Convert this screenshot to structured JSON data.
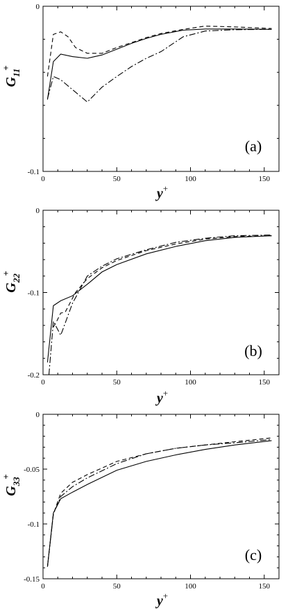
{
  "chart_data": [
    {
      "type": "line",
      "panel_label": "(a)",
      "ylabel": "G",
      "ylabel_sup": "+",
      "ylabel_sub": "11",
      "xlabel": "y",
      "xlabel_sup": "+",
      "xlim": [
        0,
        160
      ],
      "ylim": [
        -0.1,
        0
      ],
      "xticks": [
        0,
        50,
        100,
        150
      ],
      "xtick_labels": [
        "0",
        "50",
        "100",
        "150"
      ],
      "yticks": [
        -0.1,
        0
      ],
      "ytick_labels": [
        "-0.1",
        "0"
      ],
      "series": [
        {
          "style": "solid",
          "x": [
            3,
            7,
            12,
            20,
            30,
            40,
            50,
            60,
            70,
            80,
            95,
            110,
            130,
            155
          ],
          "y": [
            -0.0565,
            -0.0335,
            -0.029,
            -0.0305,
            -0.0315,
            -0.0295,
            -0.026,
            -0.0225,
            -0.0195,
            -0.017,
            -0.0145,
            -0.0138,
            -0.0138,
            -0.014
          ]
        },
        {
          "style": "dashed",
          "x": [
            3,
            7,
            12,
            17,
            22,
            30,
            40,
            50,
            60,
            70,
            80,
            95,
            110,
            130,
            155
          ],
          "y": [
            -0.0425,
            -0.017,
            -0.0155,
            -0.0185,
            -0.025,
            -0.0285,
            -0.0285,
            -0.025,
            -0.022,
            -0.019,
            -0.0165,
            -0.014,
            -0.012,
            -0.0125,
            -0.0135
          ]
        },
        {
          "style": "dashdot",
          "x": [
            3,
            7,
            12,
            20,
            30,
            40,
            50,
            60,
            70,
            80,
            95,
            110,
            130,
            155
          ],
          "y": [
            -0.056,
            -0.0425,
            -0.0445,
            -0.0505,
            -0.058,
            -0.049,
            -0.0425,
            -0.0365,
            -0.0315,
            -0.0275,
            -0.0185,
            -0.015,
            -0.0142,
            -0.014
          ]
        }
      ]
    },
    {
      "type": "line",
      "panel_label": "(b)",
      "ylabel": "G",
      "ylabel_sup": "+",
      "ylabel_sub": "22",
      "xlabel": "y",
      "xlabel_sup": "+",
      "xlim": [
        0,
        160
      ],
      "ylim": [
        -0.2,
        0
      ],
      "xticks": [
        0,
        50,
        100,
        150
      ],
      "xtick_labels": [
        "0",
        "50",
        "100",
        "150"
      ],
      "yticks": [
        -0.2,
        -0.1,
        0
      ],
      "ytick_labels": [
        "-0.2",
        "-0.1",
        "0"
      ],
      "series": [
        {
          "style": "solid",
          "x": [
            3,
            7,
            12,
            20,
            30,
            40,
            50,
            70,
            90,
            110,
            130,
            155
          ],
          "y": [
            -0.185,
            -0.116,
            -0.11,
            -0.104,
            -0.09,
            -0.075,
            -0.066,
            -0.053,
            -0.044,
            -0.037,
            -0.033,
            -0.031
          ]
        },
        {
          "style": "dashed",
          "x": [
            7,
            9,
            12,
            15,
            22,
            30,
            40,
            50,
            70,
            90,
            110,
            130,
            155
          ],
          "y": [
            -0.142,
            -0.136,
            -0.125,
            -0.124,
            -0.1,
            -0.083,
            -0.07,
            -0.061,
            -0.049,
            -0.041,
            -0.035,
            -0.032,
            -0.031
          ]
        },
        {
          "style": "dashdot",
          "x": [
            4,
            7,
            12,
            20,
            30,
            40,
            50,
            70,
            90,
            110,
            130,
            155
          ],
          "y": [
            -0.2,
            -0.135,
            -0.152,
            -0.113,
            -0.08,
            -0.068,
            -0.059,
            -0.048,
            -0.039,
            -0.034,
            -0.031,
            -0.03
          ]
        }
      ]
    },
    {
      "type": "line",
      "panel_label": "(c)",
      "ylabel": "G",
      "ylabel_sup": "+",
      "ylabel_sub": "33",
      "xlabel": "y",
      "xlabel_sup": "+",
      "xlim": [
        0,
        160
      ],
      "ylim": [
        -0.15,
        0
      ],
      "xticks": [
        0,
        50,
        100,
        150
      ],
      "xtick_labels": [
        "0",
        "50",
        "100",
        "150"
      ],
      "yticks": [
        -0.15,
        -0.1,
        -0.05,
        0
      ],
      "ytick_labels": [
        "-0.15",
        "-0.1",
        "-0.05",
        "0"
      ],
      "series": [
        {
          "style": "solid",
          "x": [
            3,
            7,
            12,
            20,
            30,
            50,
            70,
            90,
            110,
            130,
            155
          ],
          "y": [
            -0.139,
            -0.09,
            -0.077,
            -0.071,
            -0.064,
            -0.051,
            -0.043,
            -0.037,
            -0.032,
            -0.028,
            -0.024
          ]
        },
        {
          "style": "dashed",
          "x": [
            3,
            7,
            12,
            20,
            30,
            50,
            70,
            90,
            110,
            130,
            155
          ],
          "y": [
            -0.139,
            -0.091,
            -0.072,
            -0.062,
            -0.055,
            -0.043,
            -0.036,
            -0.031,
            -0.028,
            -0.025,
            -0.0215
          ]
        },
        {
          "style": "dashdot",
          "x": [
            3,
            7,
            12,
            20,
            30,
            50,
            70,
            90,
            110,
            130,
            155
          ],
          "y": [
            -0.139,
            -0.091,
            -0.075,
            -0.066,
            -0.058,
            -0.045,
            -0.036,
            -0.031,
            -0.028,
            -0.026,
            -0.023
          ]
        }
      ]
    }
  ]
}
